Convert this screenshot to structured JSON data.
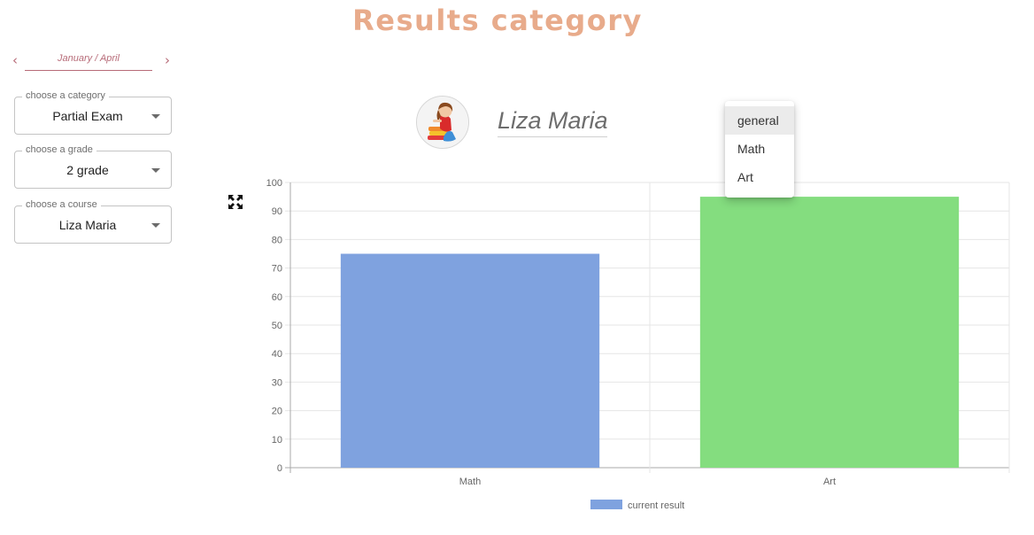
{
  "header": {
    "title": "Results category"
  },
  "colors": {
    "title": "#e8ab8b",
    "date_accent": "#b76b78",
    "bar_math": "#7fa2df",
    "bar_art": "#84dd7f"
  },
  "date_nav": {
    "label": "January / April",
    "prev_icon": "chevron-left-icon",
    "next_icon": "chevron-right-icon"
  },
  "filters": {
    "category": {
      "legend": "choose a category",
      "value": "Partial Exam"
    },
    "grade": {
      "legend": "choose a grade",
      "value": "2 grade"
    },
    "course": {
      "legend": "choose a course",
      "value": "Liza Maria"
    }
  },
  "student": {
    "name": "Liza Maria",
    "avatar_icon": "child-avatar-icon"
  },
  "toolbar": {
    "fullscreen_icon": "expand-icon"
  },
  "subject_menu": {
    "selected_index": 0,
    "options": [
      "general",
      "Math",
      "Art"
    ]
  },
  "chart_data": {
    "type": "bar",
    "categories": [
      "Math",
      "Art"
    ],
    "series": [
      {
        "name": "current result",
        "values": [
          75,
          95
        ]
      }
    ],
    "ylim": [
      0,
      100
    ],
    "yticks": [
      0,
      10,
      20,
      30,
      40,
      50,
      60,
      70,
      80,
      90,
      100
    ],
    "grid": true,
    "legend_position": "bottom"
  }
}
